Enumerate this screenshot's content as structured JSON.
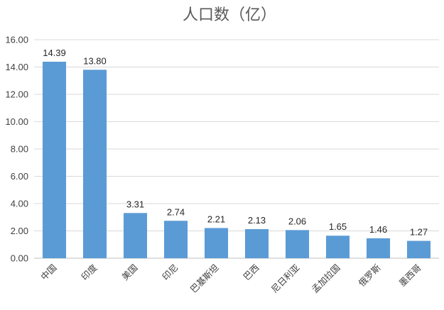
{
  "chart_data": {
    "type": "bar",
    "title": "人口数（亿）",
    "xlabel": "",
    "ylabel": "",
    "ylim": [
      0,
      16
    ],
    "yticks": [
      "0.00",
      "2.00",
      "4.00",
      "6.00",
      "8.00",
      "10.00",
      "12.00",
      "14.00",
      "16.00"
    ],
    "grid": true,
    "legend": "none",
    "categories": [
      "中国",
      "印度",
      "美国",
      "印尼",
      "巴基斯坦",
      "巴西",
      "尼日利亚",
      "孟加拉国",
      "俄罗斯",
      "墨西哥"
    ],
    "values": [
      14.39,
      13.8,
      3.31,
      2.74,
      2.21,
      2.13,
      2.06,
      1.65,
      1.46,
      1.27
    ],
    "value_labels": [
      "14.39",
      "13.80",
      "3.31",
      "2.74",
      "2.21",
      "2.13",
      "2.06",
      "1.65",
      "1.46",
      "1.27"
    ],
    "bar_color": "#5b9bd5"
  }
}
